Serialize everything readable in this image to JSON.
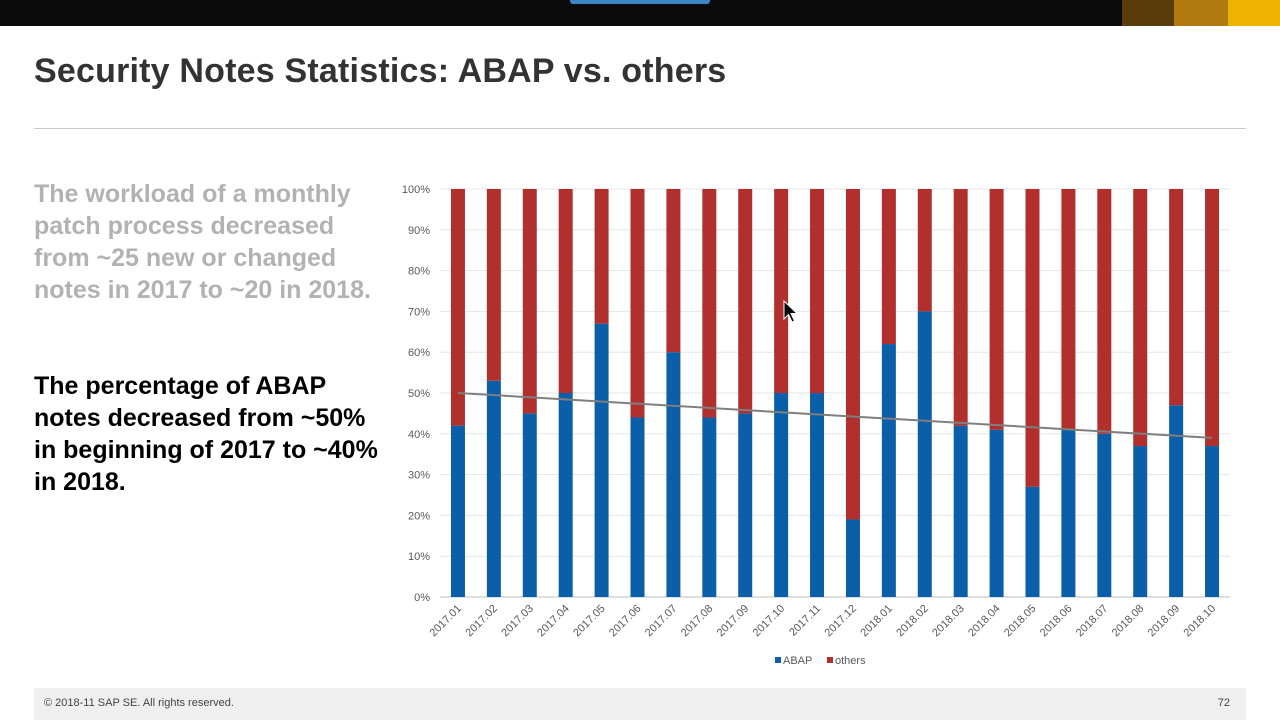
{
  "slide": {
    "title": "Security Notes Statistics: ABAP vs. others",
    "intro_text": "The workload of a monthly patch process decreased from ~25 new or changed notes in 2017 to ~20 in 2018.",
    "key_text": "The percentage of ABAP notes decreased from ~50% in beginning of 2017 to ~40% in 2018."
  },
  "footer": {
    "copyright": "© 2018-11 SAP SE. All rights reserved.",
    "page_number": "72"
  },
  "chart_data": {
    "type": "bar",
    "stacked": true,
    "percent_stacked": true,
    "title": "",
    "xlabel": "",
    "ylabel": "",
    "ylim": [
      0,
      100
    ],
    "y_ticks": [
      "0%",
      "10%",
      "20%",
      "30%",
      "40%",
      "50%",
      "60%",
      "70%",
      "80%",
      "90%",
      "100%"
    ],
    "grid": true,
    "legend_position": "bottom",
    "categories": [
      "2017.01",
      "2017.02",
      "2017.03",
      "2017.04",
      "2017.05",
      "2017.06",
      "2017.07",
      "2017.08",
      "2017.09",
      "2017.10",
      "2017.11",
      "2017.12",
      "2018.01",
      "2018.02",
      "2018.03",
      "2018.04",
      "2018.05",
      "2018.06",
      "2018.07",
      "2018.08",
      "2018.09",
      "2018.10"
    ],
    "series": [
      {
        "name": "ABAP",
        "color": "#0b5ea8",
        "values": [
          42,
          53,
          45,
          50,
          67,
          44,
          60,
          44,
          45,
          50,
          50,
          19,
          62,
          70,
          42,
          41,
          27,
          41,
          40,
          37,
          47,
          37
        ]
      },
      {
        "name": "others",
        "color": "#b1302e",
        "values": [
          58,
          47,
          55,
          50,
          33,
          56,
          40,
          56,
          55,
          50,
          50,
          81,
          38,
          30,
          58,
          59,
          73,
          59,
          60,
          63,
          53,
          63
        ]
      }
    ],
    "trendline": {
      "series": "ABAP",
      "start_value": 50,
      "end_value": 39,
      "color": "#7f7f7f"
    }
  }
}
